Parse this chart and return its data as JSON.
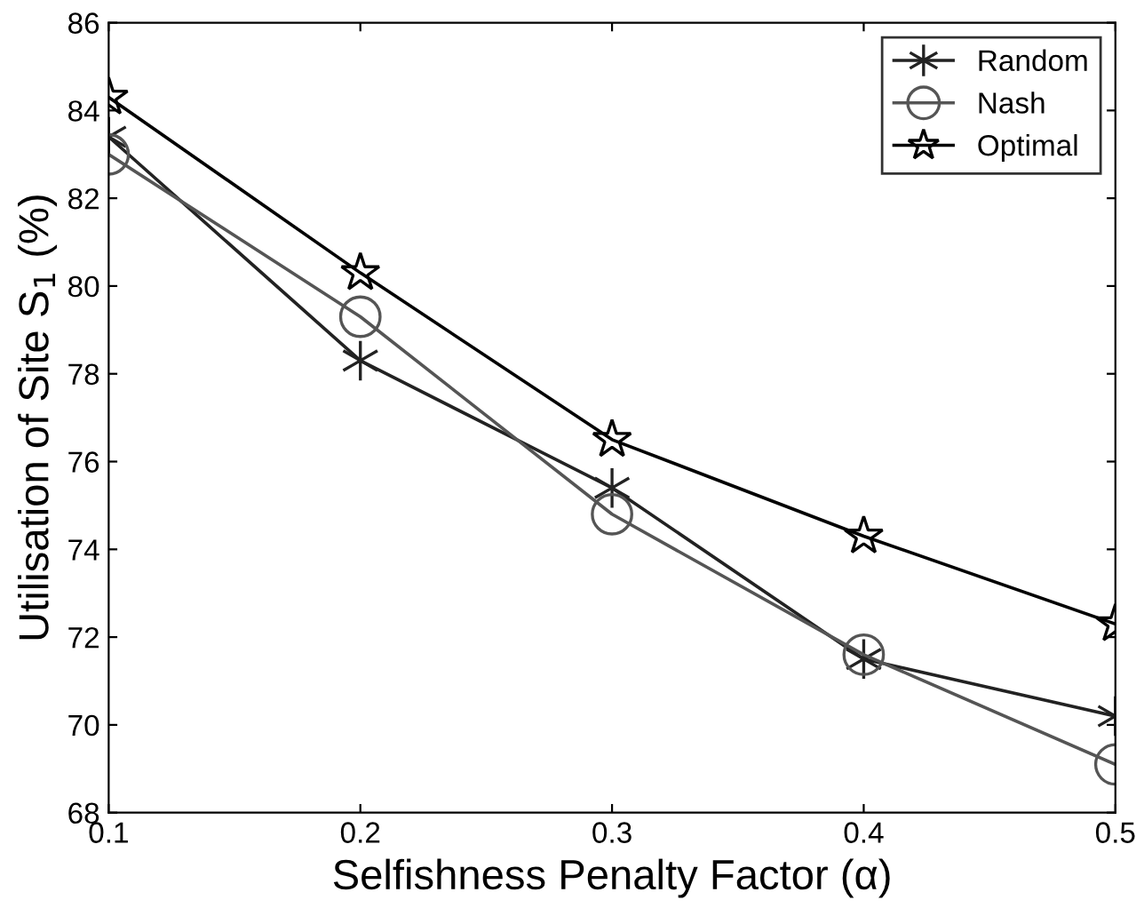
{
  "chart_data": {
    "type": "line",
    "xlabel": "Selfishness Penalty Factor (α)",
    "ylabel": "Utilisation of Site S$_{1}$ (%)",
    "x": [
      0.1,
      0.2,
      0.3,
      0.4,
      0.5
    ],
    "series": [
      {
        "name": "Random",
        "color": "#222222",
        "marker": "cross",
        "values": [
          83.4,
          78.3,
          75.4,
          71.5,
          70.2
        ]
      },
      {
        "name": "Nash",
        "color": "#555555",
        "marker": "circle",
        "values": [
          83.0,
          79.3,
          74.8,
          71.6,
          69.1
        ]
      },
      {
        "name": "Optimal",
        "color": "#000000",
        "marker": "star",
        "values": [
          84.3,
          80.3,
          76.5,
          74.3,
          72.3
        ]
      }
    ],
    "xlim": [
      0.1,
      0.5
    ],
    "xticks": [
      0.1,
      0.2,
      0.3,
      0.4,
      0.5
    ],
    "ylim": [
      68,
      86
    ],
    "yticks": [
      68,
      70,
      72,
      74,
      76,
      78,
      80,
      82,
      84,
      86
    ],
    "grid": false,
    "legend": "top right",
    "line_style": "solid"
  }
}
